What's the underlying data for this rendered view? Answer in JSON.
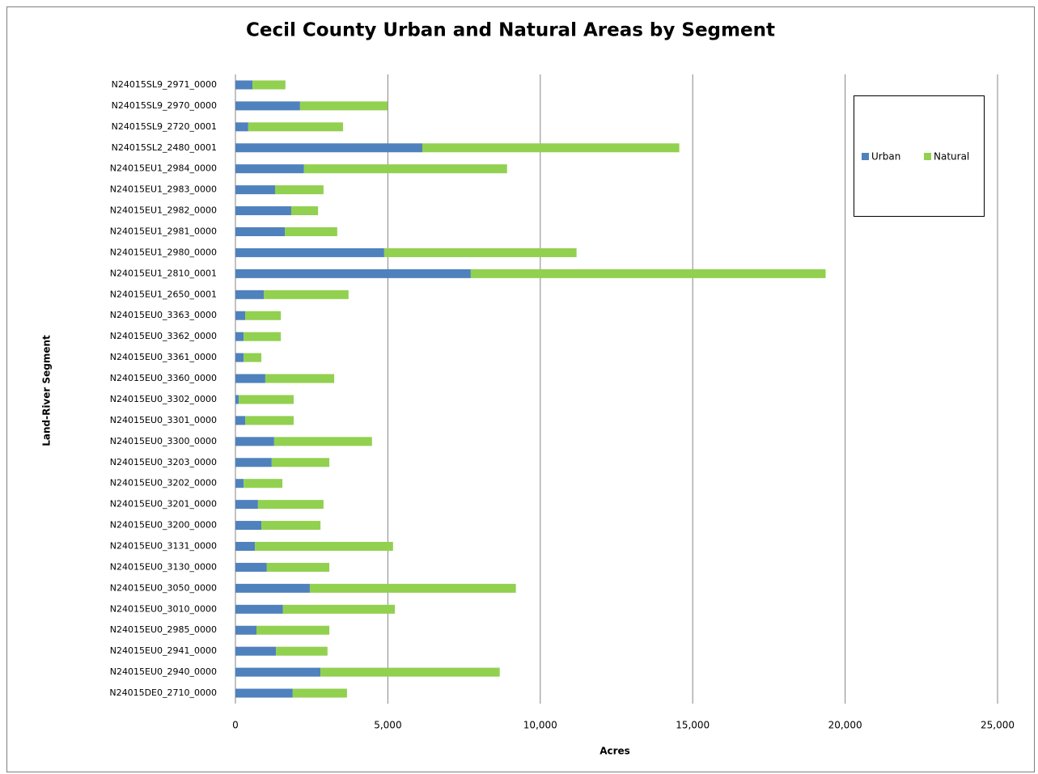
{
  "chart_data": {
    "type": "stacked-barh",
    "title": "Cecil County Urban and Natural Areas by Segment",
    "xlabel": "Acres",
    "ylabel": "Land-River Segment",
    "categories": [
      "N24015SL9_2971_0000",
      "N24015SL9_2970_0000",
      "N24015SL9_2720_0001",
      "N24015SL2_2480_0001",
      "N24015EU1_2984_0000",
      "N24015EU1_2983_0000",
      "N24015EU1_2982_0000",
      "N24015EU1_2981_0000",
      "N24015EU1_2980_0000",
      "N24015EU1_2810_0001",
      "N24015EU1_2650_0001",
      "N24015EU0_3363_0000",
      "N24015EU0_3362_0000",
      "N24015EU0_3361_0000",
      "N24015EU0_3360_0000",
      "N24015EU0_3302_0000",
      "N24015EU0_3301_0000",
      "N24015EU0_3300_0000",
      "N24015EU0_3203_0000",
      "N24015EU0_3202_0000",
      "N24015EU0_3201_0000",
      "N24015EU0_3200_0000",
      "N24015EU0_3131_0000",
      "N24015EU0_3130_0000",
      "N24015EU0_3050_0000",
      "N24015EU0_3010_0000",
      "N24015EU0_2985_0000",
      "N24015EU0_2941_0000",
      "N24015EU0_2940_0000",
      "N24015DE0_2710_0000"
    ],
    "series": [
      {
        "name": "Urban",
        "color": "#4f81bd",
        "values": [
          560,
          2120,
          420,
          6130,
          2250,
          1300,
          1830,
          1620,
          4880,
          7720,
          930,
          320,
          270,
          270,
          980,
          110,
          320,
          1270,
          1190,
          270,
          740,
          850,
          640,
          1030,
          2440,
          1560,
          690,
          1330,
          2790,
          1880
        ]
      },
      {
        "name": "Natural",
        "color": "#92d050",
        "values": [
          1080,
          2870,
          3110,
          8430,
          6660,
          1590,
          880,
          1720,
          6310,
          11640,
          2780,
          1170,
          1220,
          580,
          2260,
          1800,
          1590,
          3210,
          1890,
          1270,
          2150,
          1940,
          4530,
          2050,
          6760,
          3670,
          2390,
          1690,
          5880,
          1780
        ]
      }
    ],
    "xlim": [
      0,
      25000
    ],
    "xticks": [
      0,
      {
        "value": 5000,
        "label": "5,000"
      },
      {
        "value": 10000,
        "label": "10,000"
      },
      {
        "value": 15000,
        "label": "15,000"
      },
      {
        "value": 20000,
        "label": "20,000"
      },
      {
        "value": 25000,
        "label": "25,000"
      }
    ],
    "grid": true,
    "legend": "right"
  }
}
